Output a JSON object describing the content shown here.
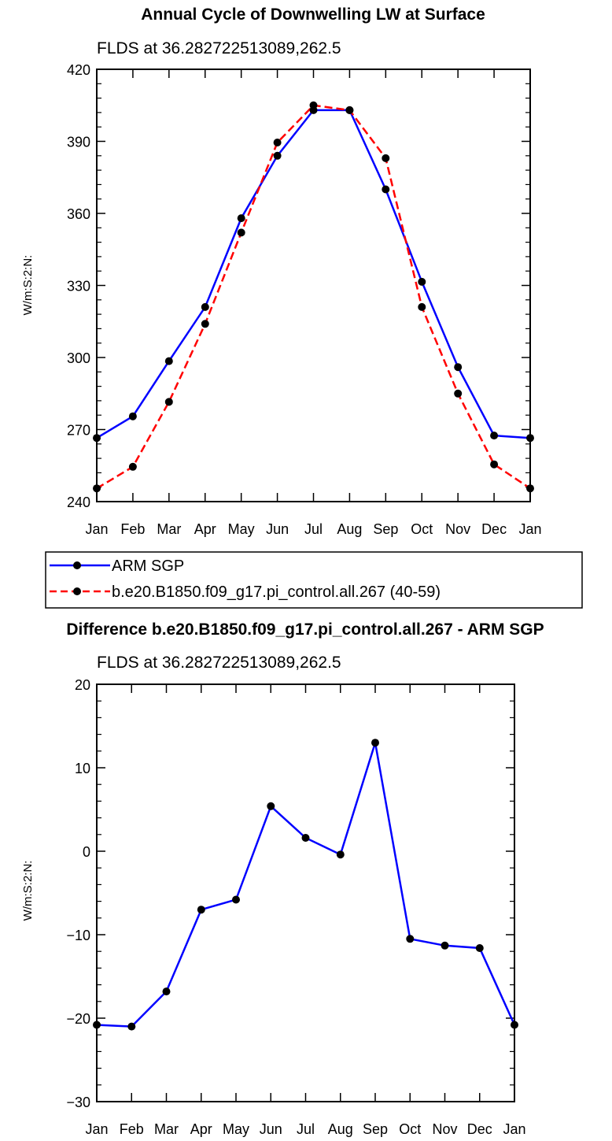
{
  "chart_data": [
    {
      "type": "line",
      "title": "Annual Cycle of Downwelling LW at Surface",
      "subtitle": "FLDS at 36.282722513089,262.5",
      "xlabel": "",
      "ylabel": "W/m:S:2:N:",
      "categories": [
        "Jan",
        "Feb",
        "Mar",
        "Apr",
        "May",
        "Jun",
        "Jul",
        "Aug",
        "Sep",
        "Oct",
        "Nov",
        "Dec",
        "Jan"
      ],
      "ylim": [
        240,
        420
      ],
      "yticks": [
        240,
        270,
        300,
        330,
        360,
        390,
        420
      ],
      "series": [
        {
          "name": "ARM SGP",
          "color": "#0000ff",
          "dashed": false,
          "values": [
            266.5,
            275.5,
            298.5,
            321,
            358,
            384,
            403,
            403,
            370,
            331.5,
            296,
            267.5,
            266.5
          ]
        },
        {
          "name": "b.e20.B1850.f09_g17.pi_control.all.267 (40-59)",
          "color": "#ff0000",
          "dashed": true,
          "values": [
            245.5,
            254.5,
            281.5,
            314,
            352,
            389.5,
            405,
            403,
            383,
            321,
            285,
            255.5,
            245.5
          ]
        }
      ],
      "legend": "below"
    },
    {
      "type": "line",
      "title": "Difference b.e20.B1850.f09_g17.pi_control.all.267 - ARM SGP",
      "subtitle": "FLDS at 36.282722513089,262.5",
      "xlabel": "",
      "ylabel": "W/m:S:2:N:",
      "categories": [
        "Jan",
        "Feb",
        "Mar",
        "Apr",
        "May",
        "Jun",
        "Jul",
        "Aug",
        "Sep",
        "Oct",
        "Nov",
        "Dec",
        "Jan"
      ],
      "ylim": [
        -30,
        20
      ],
      "yticks": [
        -30,
        -20,
        -10,
        0,
        10,
        20
      ],
      "ytick_labels": [
        "−30",
        "−20",
        "−10",
        "0",
        "10",
        "20"
      ],
      "series": [
        {
          "name": "Difference",
          "color": "#0000ff",
          "dashed": false,
          "values": [
            -20.8,
            -21.0,
            -16.8,
            -7.0,
            -5.8,
            5.4,
            1.6,
            -0.4,
            13.0,
            -10.5,
            -11.3,
            -11.6,
            -20.8
          ]
        }
      ]
    }
  ]
}
